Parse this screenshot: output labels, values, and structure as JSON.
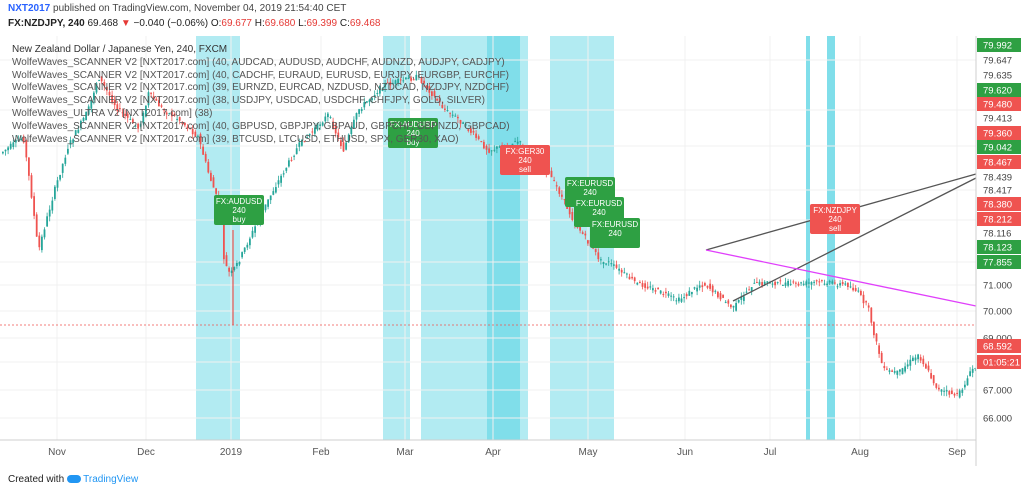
{
  "header": {
    "user": "NXT2017",
    "published": " published on TradingView.com, November 04, 2019 21:54:40 CET",
    "symbol": "FX:NZDJPY, 240",
    "last": "69.468",
    "change": "−0.040 (−0.06%)",
    "o_label": "O:",
    "o": "69.677",
    "h_label": "H:",
    "h": "69.680",
    "l_label": "L:",
    "l": "69.399",
    "c_label": "C:",
    "c": "69.468"
  },
  "legend": [
    "New Zealand Dollar / Japanese Yen, 240, FXCM",
    "WolfeWaves_SCANNER V2 [NXT2017.com] (40, AUDCAD, AUDUSD, AUDCHF, AUDNZD, AUDJPY, CADJPY)",
    "WolfeWaves_SCANNER V2 [NXT2017.com] (40, CADCHF, EURAUD, EURUSD, EURJPY, EURGBP, EURCHF)",
    "WolfeWaves_SCANNER V2 [NXT2017.com] (39, EURNZD, EURCAD, NZDUSD, NZDCAD, NZDJPY, NZDCHF)",
    "WolfeWaves_SCANNER V2 [NXT2017.com] (38, USDJPY, USDCAD, USDCHF, CHFJPY, GOLD, SILVER)",
    "WolfeWaves_ULTRA V2 [NXT2017.com] (38)",
    "WolfeWaves_SCANNER V2 [NXT2017.com] (40, GBPUSD, GBPJPY, GBPAUD, GBPCHF, GBPNZD, GBPCAD)",
    "WolfeWaves_SCANNER V2 [NXT2017.com] (39, BTCUSD, LTCUSD, ETHUSD, SPX, GER30, XAO)"
  ],
  "footer": {
    "created": "Created with",
    "brand": "TradingView"
  },
  "colors": {
    "up": "#26a69a",
    "down": "#ef5350",
    "green": "#2ea043",
    "red": "#ef5350",
    "zone": "#b2ebf2",
    "zone_dark": "#80deea",
    "magenta": "#e040fb"
  },
  "chart_data": {
    "type": "candlestick",
    "symbol": "FX:NZDJPY",
    "timeframe": "240",
    "x_ticks": [
      "Nov",
      "Dec",
      "2019",
      "Feb",
      "Mar",
      "Apr",
      "May",
      "Jun",
      "Jul",
      "Aug",
      "Sep"
    ],
    "price_scale": [
      {
        "label": "79.992",
        "bg": "#2ea043"
      },
      {
        "label": "79.647",
        "bg": "#ffffff"
      },
      {
        "label": "79.635",
        "bg": "#ffffff"
      },
      {
        "label": "79.620",
        "bg": "#2ea043"
      },
      {
        "label": "79.480",
        "bg": "#ef5350"
      },
      {
        "label": "79.413",
        "bg": "#ffffff"
      },
      {
        "label": "79.360",
        "bg": "#ef5350"
      },
      {
        "label": "79.042",
        "bg": "#2ea043"
      },
      {
        "label": "78.467",
        "bg": "#ef5350"
      },
      {
        "label": "78.439",
        "bg": "#ffffff"
      },
      {
        "label": "78.417",
        "bg": "#ffffff"
      },
      {
        "label": "78.380",
        "bg": "#ef5350"
      },
      {
        "label": "78.212",
        "bg": "#ef5350"
      },
      {
        "label": "78.116",
        "bg": "#ffffff"
      },
      {
        "label": "78.123",
        "bg": "#2ea043"
      },
      {
        "label": "77.855",
        "bg": "#2ea043"
      },
      {
        "label": "71.000",
        "bg": "#ffffff"
      },
      {
        "label": "70.000",
        "bg": "#ffffff"
      },
      {
        "label": "69.000",
        "bg": "#ffffff"
      },
      {
        "label": "68.592",
        "bg": "#ef5350"
      },
      {
        "label": "01:05:21",
        "bg": "#ef5350"
      },
      {
        "label": "67.000",
        "bg": "#ffffff"
      },
      {
        "label": "66.000",
        "bg": "#ffffff"
      }
    ],
    "signals": [
      {
        "text": [
          "FX:AUDUSD",
          "240",
          "buy"
        ],
        "color": "green"
      },
      {
        "text": [
          "FX:AUDUSD",
          "240",
          "buy"
        ],
        "color": "green"
      },
      {
        "text": [
          "FX:GER30",
          "240",
          "sell"
        ],
        "color": "red"
      },
      {
        "text": [
          "FX:EURUSD",
          "240",
          "buy"
        ],
        "color": "green"
      },
      {
        "text": [
          "FX:EURUSD",
          "240",
          "buy"
        ],
        "color": "green"
      },
      {
        "text": [
          "FX:EURUSD",
          "240"
        ],
        "color": "green"
      },
      {
        "text": [
          "FX:NZDJPY",
          "240",
          "sell"
        ],
        "color": "red"
      }
    ],
    "path": [
      [
        0,
        78.9
      ],
      [
        25,
        79.1
      ],
      [
        40,
        77.9
      ],
      [
        70,
        79.0
      ],
      [
        100,
        79.6
      ],
      [
        140,
        79.2
      ],
      [
        150,
        79.5
      ],
      [
        180,
        79.3
      ],
      [
        200,
        79.1
      ],
      [
        210,
        78.7
      ],
      [
        225,
        78.2
      ],
      [
        232,
        74.0
      ],
      [
        240,
        77.8
      ],
      [
        270,
        78.4
      ],
      [
        300,
        79.0
      ],
      [
        330,
        79.35
      ],
      [
        345,
        78.95
      ],
      [
        360,
        79.4
      ],
      [
        385,
        79.55
      ],
      [
        420,
        79.6
      ],
      [
        460,
        79.3
      ],
      [
        490,
        78.95
      ],
      [
        520,
        79.05
      ],
      [
        550,
        78.7
      ],
      [
        575,
        78.2
      ],
      [
        610,
        77.7
      ],
      [
        640,
        71.1
      ],
      [
        680,
        70.4
      ],
      [
        705,
        71.1
      ],
      [
        735,
        70.1
      ],
      [
        770,
        71.8
      ],
      [
        800,
        71.2
      ],
      [
        820,
        71.9
      ],
      [
        840,
        71.3
      ],
      [
        860,
        70.7
      ],
      [
        870,
        70.1
      ],
      [
        878,
        68.8
      ],
      [
        885,
        67.7
      ],
      [
        900,
        67.6
      ],
      [
        920,
        68.3
      ],
      [
        940,
        67.0
      ],
      [
        960,
        66.8
      ],
      [
        975,
        67.8
      ]
    ]
  }
}
